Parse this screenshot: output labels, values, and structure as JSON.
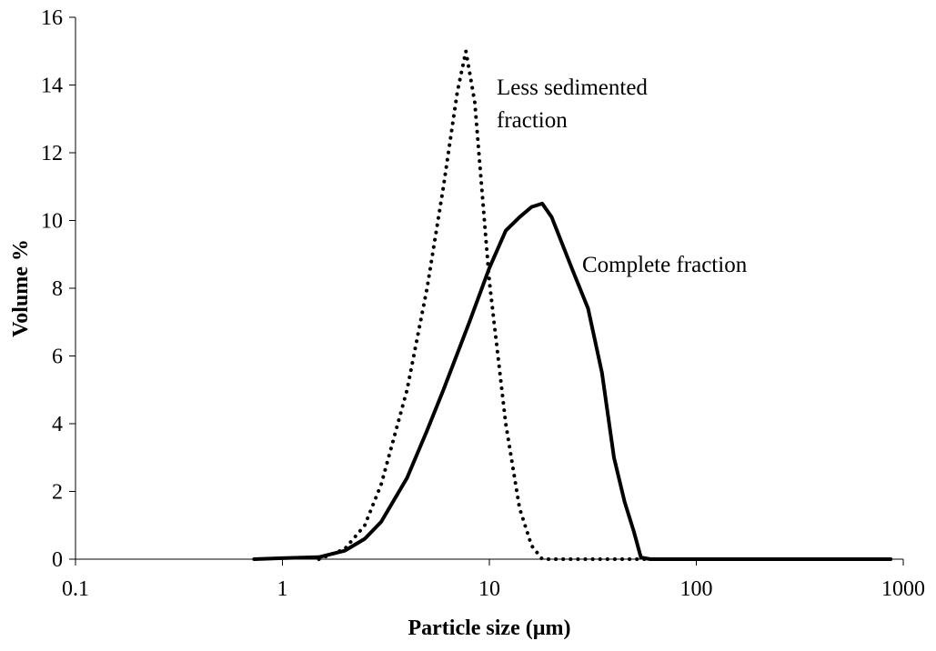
{
  "chart_data": {
    "type": "line",
    "x_label": "Particle size (µm)",
    "y_label": "Volume %",
    "xlim": [
      0.1,
      1000
    ],
    "xticks": [
      0.1,
      1,
      10,
      100,
      1000
    ],
    "xscale": "log",
    "ylim": [
      0,
      16
    ],
    "yticks": [
      0,
      2,
      4,
      6,
      8,
      10,
      12,
      14,
      16
    ],
    "series": [
      {
        "name": "Less sedimented fraction",
        "color": "#000000",
        "dash": "dotted",
        "x": [
          1.5,
          2,
          2.5,
          3,
          4,
          5,
          6,
          7,
          7.7,
          8.5,
          10,
          12,
          14,
          16,
          18,
          30,
          100,
          870
        ],
        "values": [
          0,
          0.3,
          1.0,
          2.2,
          5.0,
          8.0,
          11.0,
          13.8,
          15.0,
          13.5,
          8.2,
          4.0,
          1.5,
          0.4,
          0,
          0,
          0,
          0
        ]
      },
      {
        "name": "Complete fraction",
        "color": "#000000",
        "dash": "solid",
        "x": [
          0.73,
          1,
          1.5,
          2,
          2.5,
          3,
          4,
          5,
          6,
          8,
          10,
          12,
          14,
          16,
          18,
          20,
          25,
          30,
          35,
          40,
          45,
          50,
          54,
          60,
          100,
          500,
          870
        ],
        "values": [
          0,
          0.03,
          0.06,
          0.25,
          0.6,
          1.1,
          2.4,
          3.8,
          5.0,
          7.0,
          8.6,
          9.7,
          10.1,
          10.4,
          10.5,
          10.1,
          8.6,
          7.4,
          5.5,
          3.0,
          1.7,
          0.8,
          0.05,
          0,
          0,
          0,
          0
        ]
      }
    ]
  }
}
